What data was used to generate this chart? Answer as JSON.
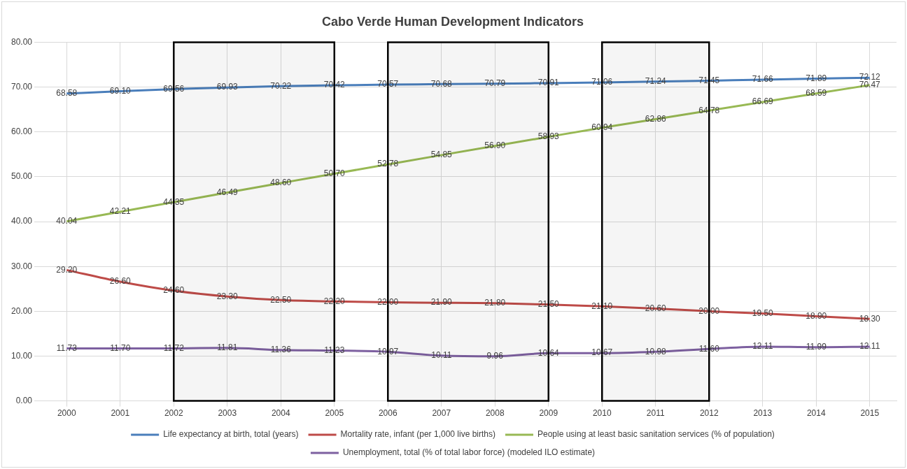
{
  "chart_data": {
    "type": "line",
    "title": "Cabo Verde Human Development Indicators",
    "categories": [
      "2000",
      "2001",
      "2002",
      "2003",
      "2004",
      "2005",
      "2006",
      "2007",
      "2008",
      "2009",
      "2010",
      "2011",
      "2012",
      "2013",
      "2014",
      "2015"
    ],
    "series": [
      {
        "name": "Life expectancy at birth, total (years)",
        "color": "#4a7ebb",
        "values": [
          68.58,
          69.1,
          69.56,
          69.93,
          70.22,
          70.42,
          70.57,
          70.68,
          70.79,
          70.91,
          71.06,
          71.24,
          71.45,
          71.66,
          71.89,
          72.12
        ],
        "value_labels": [
          "68.58",
          "69.10",
          "69.56",
          "69.93",
          "70.22",
          "70.42",
          "70.57",
          "70.68",
          "70.79",
          "70.91",
          "71.06",
          "71.24",
          "71.45",
          "71.66",
          "71.89",
          "72.12"
        ]
      },
      {
        "name": "Mortality rate, infant (per 1,000 live births)",
        "color": "#be4b48",
        "values": [
          29.2,
          26.6,
          24.6,
          23.3,
          22.5,
          22.2,
          22.0,
          21.9,
          21.8,
          21.5,
          21.1,
          20.6,
          20.0,
          19.5,
          18.9,
          18.3
        ],
        "value_labels": [
          "29.20",
          "26.60",
          "24.60",
          "23.30",
          "22.50",
          "22.20",
          "22.00",
          "21.90",
          "21.80",
          "21.50",
          "21.10",
          "20.60",
          "20.00",
          "19.50",
          "18.90",
          "18.30"
        ]
      },
      {
        "name": "People using at least basic sanitation services (% of population)",
        "color": "#98b954",
        "values": [
          40.04,
          42.21,
          44.35,
          46.49,
          48.6,
          50.7,
          52.78,
          54.85,
          56.9,
          58.93,
          60.94,
          62.86,
          64.78,
          66.69,
          68.59,
          70.47
        ],
        "value_labels": [
          "40.04",
          "42.21",
          "44.35",
          "46.49",
          "48.60",
          "50.70",
          "52.78",
          "54.85",
          "56.90",
          "58.93",
          "60.94",
          "62.86",
          "64.78",
          "66.69",
          "68.59",
          "70.47"
        ]
      },
      {
        "name": "Unemployment, total (% of total labor force) (modeled ILO estimate)",
        "color": "#7d60a0",
        "values": [
          11.73,
          11.7,
          11.72,
          11.81,
          11.36,
          11.23,
          10.97,
          10.11,
          9.96,
          10.64,
          10.67,
          10.98,
          11.6,
          12.11,
          11.99,
          12.11
        ],
        "value_labels": [
          "11.73",
          "11.70",
          "11.72",
          "11.81",
          "11.36",
          "11.23",
          "10.97",
          "10.11",
          "9.96",
          "10.64",
          "10.67",
          "10.98",
          "11.60",
          "12.11",
          "11.99",
          "12.11"
        ]
      }
    ],
    "ylim": [
      0,
      80
    ],
    "yticks": [
      {
        "value": 0,
        "label": "0.00"
      },
      {
        "value": 10,
        "label": "10.00"
      },
      {
        "value": 20,
        "label": "20.00"
      },
      {
        "value": 30,
        "label": "30.00"
      },
      {
        "value": 40,
        "label": "40.00"
      },
      {
        "value": 50,
        "label": "50.00"
      },
      {
        "value": 60,
        "label": "60.00"
      },
      {
        "value": 70,
        "label": "70.00"
      },
      {
        "value": 80,
        "label": "80.00"
      }
    ],
    "bands": [
      {
        "axis": "x",
        "from": "2002",
        "to": "2005",
        "color": "#000000"
      },
      {
        "axis": "x",
        "from": "2006",
        "to": "2009",
        "color": "#000000"
      },
      {
        "axis": "x",
        "from": "2010",
        "to": "2012",
        "color": "#000000"
      }
    ],
    "grid": true,
    "legend": "bottom",
    "marker": "none",
    "line_style": "solid"
  }
}
